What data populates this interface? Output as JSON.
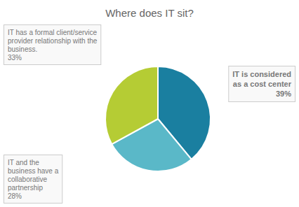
{
  "chart_data": {
    "type": "pie",
    "title": "Where does IT sit?",
    "categories": [
      "IT is considered\nas a cost center",
      "IT and the\nbusiness have a\ncollaborative\npartnership",
      "IT has a formal client/service\nprovider relationship with the\nbusiness."
    ],
    "values": [
      39,
      28,
      33
    ],
    "value_labels": [
      "39%",
      "28%",
      "33%"
    ],
    "colors": [
      "#1a7fa0",
      "#5ab8c8",
      "#b5cc34"
    ]
  }
}
